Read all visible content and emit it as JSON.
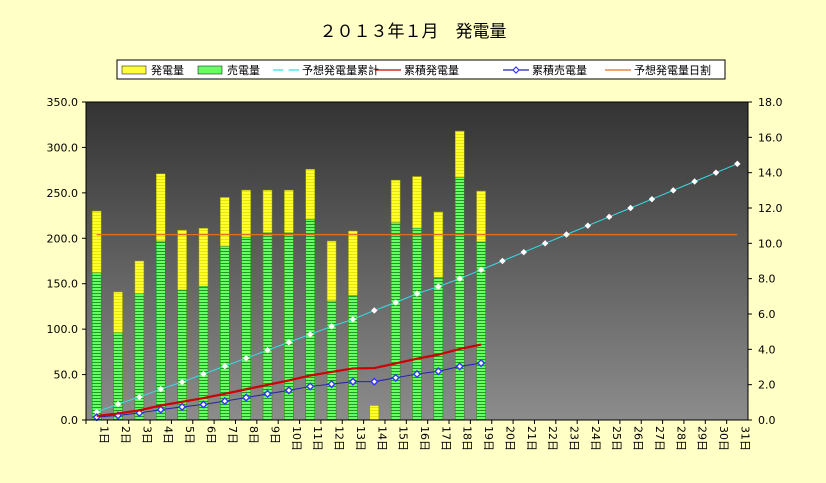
{
  "chart_data": {
    "type": "bar",
    "title": "２０１３年１月　発電量",
    "categories": [
      "1日",
      "2日",
      "3日",
      "4日",
      "5日",
      "6日",
      "7日",
      "8日",
      "9日",
      "10日",
      "11日",
      "12日",
      "13日",
      "14日",
      "15日",
      "16日",
      "17日",
      "18日",
      "19日",
      "20日",
      "21日",
      "22日",
      "23日",
      "24日",
      "25日",
      "26日",
      "27日",
      "28日",
      "29日",
      "30日",
      "31日"
    ],
    "ylim": [
      0,
      350
    ],
    "y2lim": [
      0,
      18
    ],
    "yticks": [
      "0.0",
      "50.0",
      "100.0",
      "150.0",
      "200.0",
      "250.0",
      "300.0",
      "350.0"
    ],
    "y2ticks": [
      "0.0",
      "2.0",
      "4.0",
      "6.0",
      "8.0",
      "10.0",
      "12.0",
      "14.0",
      "16.0",
      "18.0"
    ],
    "legend_position": "top",
    "series": [
      {
        "name": "発電量",
        "kind": "bar",
        "axis": "left",
        "color": "#ffff33",
        "values": [
          230,
          141,
          175,
          271,
          209,
          211,
          245,
          253,
          253,
          253,
          276,
          197,
          208,
          16,
          264,
          268,
          229,
          318,
          252,
          null,
          null,
          null,
          null,
          null,
          null,
          null,
          null,
          null,
          null,
          null,
          null
        ]
      },
      {
        "name": "売電量",
        "kind": "bar",
        "axis": "left",
        "color": "#66ff66",
        "values": [
          162,
          96,
          139,
          197,
          143,
          147,
          191,
          201,
          206,
          206,
          221,
          131,
          137,
          0,
          217,
          211,
          157,
          267,
          196,
          null,
          null,
          null,
          null,
          null,
          null,
          null,
          null,
          null,
          null,
          null,
          null
        ]
      },
      {
        "name": "累積発電量",
        "kind": "line",
        "axis": "right",
        "color": "#cc0000",
        "marker": "#ff3333",
        "values": [
          0.23,
          0.37,
          0.55,
          0.82,
          1.03,
          1.24,
          1.48,
          1.74,
          1.99,
          2.24,
          2.52,
          2.72,
          2.92,
          2.94,
          3.2,
          3.47,
          3.7,
          4.02,
          4.27,
          null,
          null,
          null,
          null,
          null,
          null,
          null,
          null,
          null,
          null,
          null,
          null
        ]
      },
      {
        "name": "予想発電量累計",
        "kind": "line",
        "axis": "right",
        "color": "#33e0e8",
        "values": [
          0.45,
          0.9,
          1.3,
          1.75,
          2.15,
          2.6,
          3.05,
          3.5,
          3.95,
          4.4,
          4.85,
          5.3,
          5.7,
          6.2,
          6.65,
          7.15,
          7.55,
          8.0,
          8.5,
          9.0,
          9.5,
          10.0,
          10.5,
          11.0,
          11.5,
          12.0,
          12.5,
          13.0,
          13.5,
          14.0,
          14.5
        ]
      },
      {
        "name": "累積売電量",
        "kind": "line",
        "axis": "right",
        "color": "#2222aa",
        "marker": "#3333ff",
        "values": [
          0.16,
          0.26,
          0.4,
          0.59,
          0.74,
          0.88,
          1.07,
          1.27,
          1.48,
          1.68,
          1.9,
          2.03,
          2.17,
          2.17,
          2.39,
          2.6,
          2.76,
          3.03,
          3.22,
          null,
          null,
          null,
          null,
          null,
          null,
          null,
          null,
          null,
          null,
          null,
          null
        ]
      },
      {
        "name": "予想発電量日割",
        "kind": "line",
        "axis": "left",
        "color": "#e07020",
        "values": [
          204,
          204,
          204,
          204,
          204,
          204,
          204,
          204,
          204,
          204,
          204,
          204,
          204,
          204,
          204,
          204,
          204,
          204,
          204,
          204,
          204,
          204,
          204,
          204,
          204,
          204,
          204,
          204,
          204,
          204,
          204
        ]
      }
    ]
  }
}
